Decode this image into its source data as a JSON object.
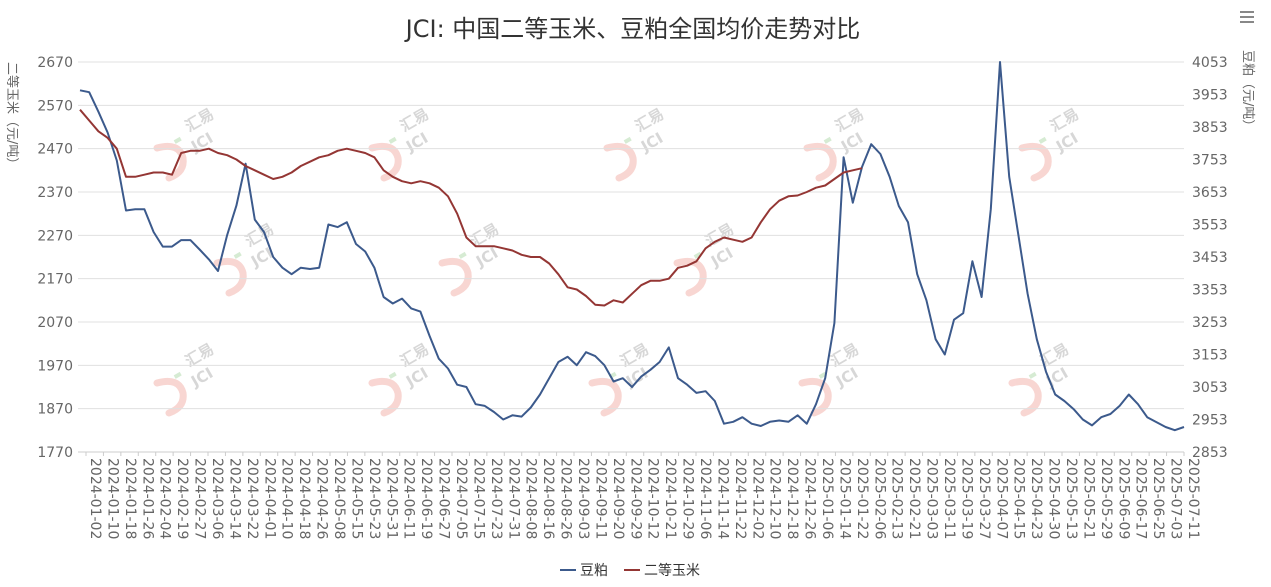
{
  "chart_data": {
    "type": "line",
    "title": "JCI: 中国二等玉米、豆粕全国均价走势对比",
    "ylabel_left": "二等玉米（元/吨）",
    "ylabel_right": "豆粕（元/吨）",
    "ylim_left": [
      1770,
      2670
    ],
    "ylim_right": [
      2853,
      4053
    ],
    "yticks_left": [
      "2670",
      "2570",
      "2470",
      "2370",
      "2270",
      "2170",
      "2070",
      "1970",
      "1870",
      "1770"
    ],
    "yticks_right": [
      "4053",
      "3953",
      "3853",
      "3753",
      "3653",
      "3553",
      "3453",
      "3353",
      "3253",
      "3153",
      "3053",
      "2953",
      "2853"
    ],
    "x_tick_labels": [
      "2024-01-02",
      "2024-01-10",
      "2024-01-18",
      "2024-01-26",
      "2024-02-04",
      "2024-02-19",
      "2024-02-27",
      "2024-03-06",
      "2024-03-14",
      "2024-03-22",
      "2024-04-01",
      "2024-04-10",
      "2024-04-18",
      "2024-04-26",
      "2024-05-08",
      "2024-05-15",
      "2024-05-23",
      "2024-05-31",
      "2024-06-11",
      "2024-06-19",
      "2024-06-27",
      "2024-07-05",
      "2024-07-15",
      "2024-07-23",
      "2024-07-31",
      "2024-08-08",
      "2024-08-16",
      "2024-08-26",
      "2024-09-03",
      "2024-09-11",
      "2024-09-20",
      "2024-09-29",
      "2024-10-12",
      "2024-10-21",
      "2024-10-29",
      "2024-11-06",
      "2024-11-14",
      "2024-11-22",
      "2024-12-02",
      "2024-12-10",
      "2024-12-18",
      "2024-12-26",
      "2025-01-06",
      "2025-01-14",
      "2025-01-22",
      "2025-02-06",
      "2025-02-13",
      "2025-02-21",
      "2025-03-03",
      "2025-03-11",
      "2025-03-19",
      "2025-03-27",
      "2025-04-07",
      "2025-04-15",
      "2025-04-23",
      "2025-04-30",
      "2025-05-13",
      "2025-05-21",
      "2025-05-29",
      "2025-06-09",
      "2025-06-17",
      "2025-06-25",
      "2025-07-03",
      "2025-07-11"
    ],
    "legend": [
      "豆粕",
      "二等玉米"
    ],
    "legend_position": "bottom-center",
    "grid": true,
    "series": [
      {
        "name": "豆粕",
        "axis": "right",
        "color": "#3c5a8c",
        "points": [
          [
            0,
            3966
          ],
          [
            1,
            3960
          ],
          [
            2,
            3900
          ],
          [
            3,
            3836
          ],
          [
            4,
            3750
          ],
          [
            5,
            3596
          ],
          [
            6,
            3600
          ],
          [
            7,
            3600
          ],
          [
            8,
            3530
          ],
          [
            9,
            3485
          ],
          [
            10,
            3485
          ],
          [
            11,
            3505
          ],
          [
            12,
            3505
          ],
          [
            13,
            3476
          ],
          [
            14,
            3446
          ],
          [
            15,
            3410
          ],
          [
            16,
            3521
          ],
          [
            17,
            3611
          ],
          [
            18,
            3740
          ],
          [
            19,
            3568
          ],
          [
            20,
            3530
          ],
          [
            21,
            3453
          ],
          [
            22,
            3420
          ],
          [
            23,
            3400
          ],
          [
            24,
            3420
          ],
          [
            25,
            3416
          ],
          [
            26,
            3420
          ],
          [
            27,
            3553
          ],
          [
            28,
            3545
          ],
          [
            29,
            3560
          ],
          [
            30,
            3493
          ],
          [
            31,
            3470
          ],
          [
            32,
            3420
          ],
          [
            33,
            3330
          ],
          [
            34,
            3310
          ],
          [
            35,
            3325
          ],
          [
            36,
            3295
          ],
          [
            37,
            3285
          ],
          [
            38,
            3210
          ],
          [
            39,
            3140
          ],
          [
            40,
            3110
          ],
          [
            41,
            3060
          ],
          [
            42,
            3053
          ],
          [
            43,
            3000
          ],
          [
            44,
            2995
          ],
          [
            45,
            2976
          ],
          [
            46,
            2953
          ],
          [
            47,
            2966
          ],
          [
            48,
            2962
          ],
          [
            49,
            2990
          ],
          [
            50,
            3030
          ],
          [
            51,
            3080
          ],
          [
            52,
            3130
          ],
          [
            53,
            3146
          ],
          [
            54,
            3120
          ],
          [
            55,
            3160
          ],
          [
            56,
            3148
          ],
          [
            57,
            3120
          ],
          [
            58,
            3070
          ],
          [
            59,
            3080
          ],
          [
            60,
            3053
          ],
          [
            61,
            3085
          ],
          [
            62,
            3106
          ],
          [
            63,
            3130
          ],
          [
            64,
            3175
          ],
          [
            65,
            3080
          ],
          [
            66,
            3060
          ],
          [
            67,
            3035
          ],
          [
            68,
            3040
          ],
          [
            69,
            3010
          ],
          [
            70,
            2940
          ],
          [
            71,
            2946
          ],
          [
            72,
            2960
          ],
          [
            73,
            2940
          ],
          [
            74,
            2933
          ],
          [
            75,
            2946
          ],
          [
            76,
            2950
          ],
          [
            77,
            2946
          ],
          [
            78,
            2966
          ],
          [
            79,
            2940
          ],
          [
            80,
            3000
          ],
          [
            81,
            3080
          ],
          [
            82,
            3250
          ],
          [
            83,
            3760
          ],
          [
            84,
            3620
          ],
          [
            85,
            3730
          ],
          [
            86,
            3800
          ],
          [
            87,
            3770
          ],
          [
            88,
            3700
          ],
          [
            89,
            3610
          ],
          [
            90,
            3560
          ],
          [
            91,
            3400
          ],
          [
            92,
            3320
          ],
          [
            93,
            3200
          ],
          [
            94,
            3153
          ],
          [
            95,
            3260
          ],
          [
            96,
            3280
          ],
          [
            97,
            3440
          ],
          [
            98,
            3330
          ],
          [
            99,
            3600
          ],
          [
            100,
            4053
          ],
          [
            101,
            3700
          ],
          [
            102,
            3520
          ],
          [
            103,
            3340
          ],
          [
            104,
            3200
          ],
          [
            105,
            3100
          ],
          [
            106,
            3030
          ],
          [
            107,
            3010
          ],
          [
            108,
            2985
          ],
          [
            109,
            2953
          ],
          [
            110,
            2935
          ],
          [
            111,
            2960
          ],
          [
            112,
            2970
          ],
          [
            113,
            2995
          ],
          [
            114,
            3030
          ],
          [
            115,
            3000
          ],
          [
            116,
            2960
          ],
          [
            117,
            2945
          ],
          [
            118,
            2930
          ],
          [
            119,
            2920
          ],
          [
            120,
            2930
          ]
        ]
      },
      {
        "name": "二等玉米",
        "axis": "left",
        "color": "#943634",
        "points": [
          [
            0,
            2560
          ],
          [
            1,
            2535
          ],
          [
            2,
            2510
          ],
          [
            3,
            2495
          ],
          [
            4,
            2470
          ],
          [
            5,
            2405
          ],
          [
            6,
            2405
          ],
          [
            7,
            2410
          ],
          [
            8,
            2415
          ],
          [
            9,
            2415
          ],
          [
            10,
            2410
          ],
          [
            11,
            2460
          ],
          [
            12,
            2465
          ],
          [
            13,
            2465
          ],
          [
            14,
            2470
          ],
          [
            15,
            2460
          ],
          [
            16,
            2455
          ],
          [
            17,
            2445
          ],
          [
            18,
            2430
          ],
          [
            19,
            2420
          ],
          [
            20,
            2410
          ],
          [
            21,
            2400
          ],
          [
            22,
            2405
          ],
          [
            23,
            2415
          ],
          [
            24,
            2430
          ],
          [
            25,
            2440
          ],
          [
            26,
            2450
          ],
          [
            27,
            2455
          ],
          [
            28,
            2465
          ],
          [
            29,
            2470
          ],
          [
            30,
            2465
          ],
          [
            31,
            2460
          ],
          [
            32,
            2450
          ],
          [
            33,
            2420
          ],
          [
            34,
            2405
          ],
          [
            35,
            2395
          ],
          [
            36,
            2390
          ],
          [
            37,
            2395
          ],
          [
            38,
            2390
          ],
          [
            39,
            2380
          ],
          [
            40,
            2360
          ],
          [
            41,
            2320
          ],
          [
            42,
            2265
          ],
          [
            43,
            2245
          ],
          [
            44,
            2245
          ],
          [
            45,
            2245
          ],
          [
            46,
            2240
          ],
          [
            47,
            2235
          ],
          [
            48,
            2225
          ],
          [
            49,
            2220
          ],
          [
            50,
            2220
          ],
          [
            51,
            2205
          ],
          [
            52,
            2180
          ],
          [
            53,
            2150
          ],
          [
            54,
            2145
          ],
          [
            55,
            2130
          ],
          [
            56,
            2110
          ],
          [
            57,
            2108
          ],
          [
            58,
            2120
          ],
          [
            59,
            2115
          ],
          [
            60,
            2135
          ],
          [
            61,
            2155
          ],
          [
            62,
            2165
          ],
          [
            63,
            2165
          ],
          [
            64,
            2170
          ],
          [
            65,
            2195
          ],
          [
            66,
            2200
          ],
          [
            67,
            2210
          ],
          [
            68,
            2240
          ],
          [
            69,
            2255
          ],
          [
            70,
            2265
          ],
          [
            71,
            2260
          ],
          [
            72,
            2255
          ],
          [
            73,
            2265
          ],
          [
            74,
            2300
          ],
          [
            75,
            2330
          ],
          [
            76,
            2350
          ],
          [
            77,
            2360
          ],
          [
            78,
            2362
          ],
          [
            79,
            2370
          ],
          [
            80,
            2380
          ],
          [
            81,
            2385
          ],
          [
            82,
            2400
          ],
          [
            83,
            2415
          ],
          [
            84,
            2420
          ],
          [
            85,
            2425
          ]
        ]
      }
    ]
  },
  "menu_icon": "hamburger-menu-icon",
  "watermark": {
    "text": "汇易",
    "latin": "JCI"
  }
}
